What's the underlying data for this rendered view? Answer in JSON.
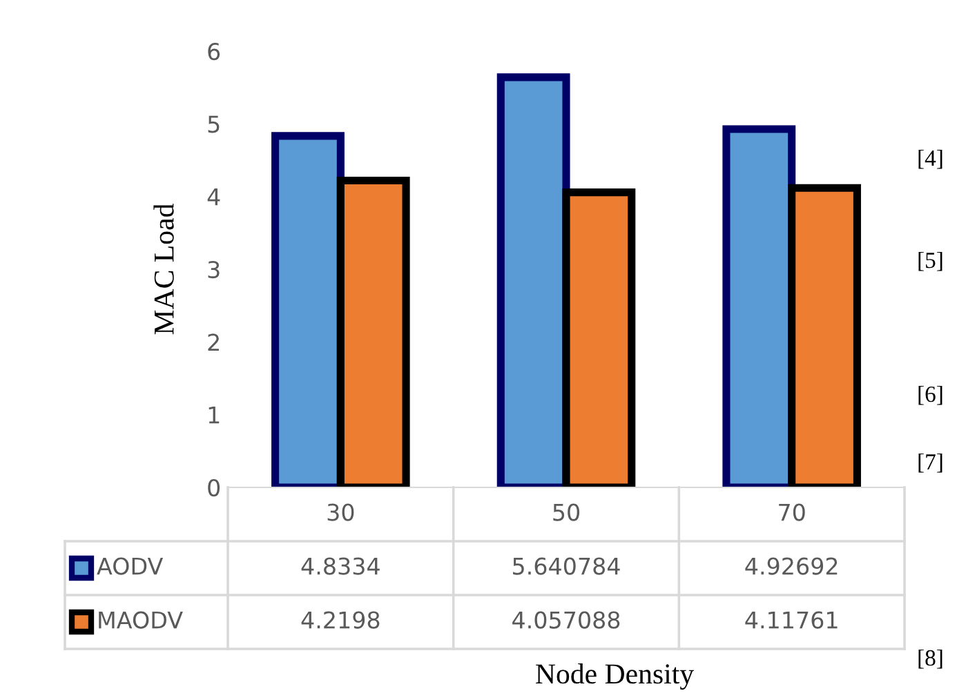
{
  "chart_data": {
    "type": "bar",
    "xlabel": "Node Density",
    "ylabel": "MAC Load",
    "categories": [
      "30",
      "50",
      "70"
    ],
    "series": [
      {
        "name": "AODV",
        "color": "#5b9bd5",
        "values": [
          4.8334,
          5.640784,
          4.92692
        ]
      },
      {
        "name": "MAODV",
        "color": "#ed7d31",
        "values": [
          4.2198,
          4.057088,
          4.11761
        ]
      }
    ],
    "ylim": [
      0,
      6
    ],
    "yticks": [
      0,
      1,
      2,
      3,
      4,
      5,
      6
    ],
    "grid": false,
    "legend": "bottom",
    "data_labels": true,
    "annotations": [
      "[4]",
      "[5]",
      "[6]",
      "[7]",
      "[8]"
    ]
  }
}
